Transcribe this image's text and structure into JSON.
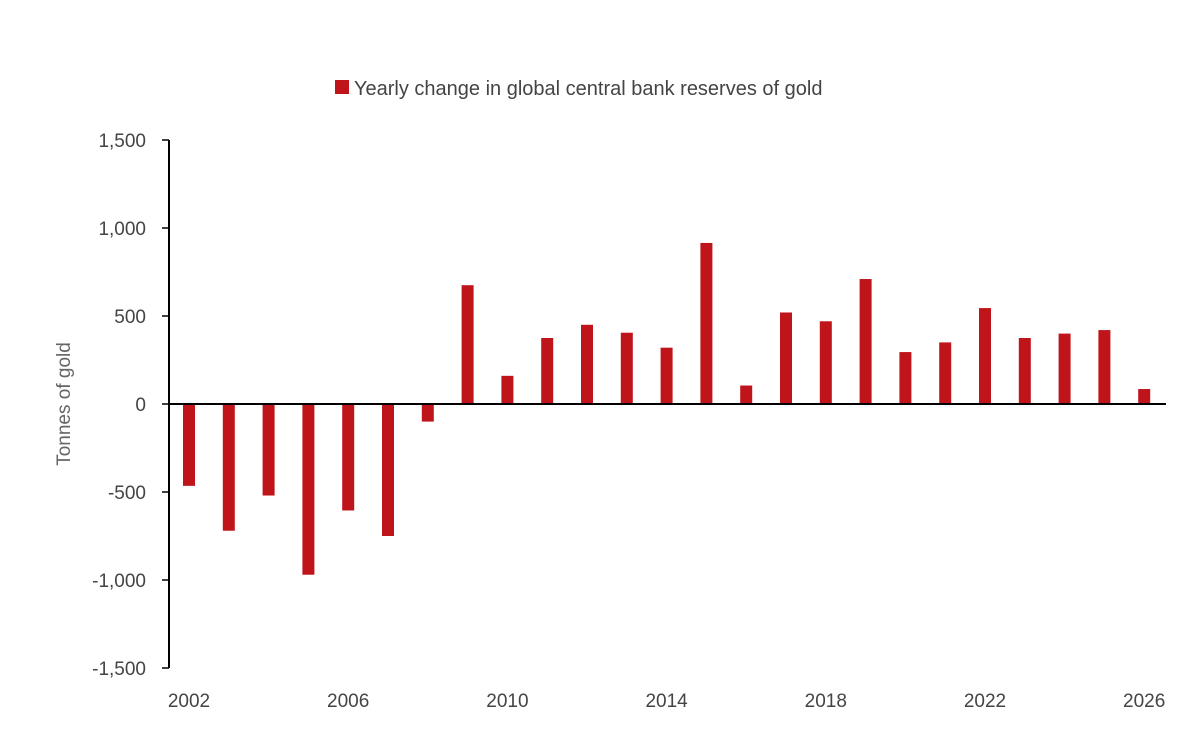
{
  "chart_data": {
    "type": "bar",
    "title": "",
    "legend": {
      "position": "top-center",
      "entries": [
        "Yearly change in global central bank reserves of gold"
      ]
    },
    "ylabel": "Tonnes of gold",
    "xlabel": "",
    "ylim": [
      -1500,
      1500
    ],
    "y_ticks": [
      1500,
      1000,
      500,
      0,
      -500,
      -1000,
      -1500
    ],
    "y_tick_labels": [
      "1,500",
      "1,000",
      "500",
      "0",
      "-500",
      "-1,000",
      "-1,500"
    ],
    "x_tick_labels": [
      "2002",
      "2006",
      "2010",
      "2014",
      "2018",
      "2022",
      "2026"
    ],
    "grid": false,
    "series": [
      {
        "name": "Yearly change in global central bank reserves of gold",
        "color": "#c0141b",
        "x": [
          2002,
          2003,
          2004,
          2005,
          2006,
          2007,
          2008,
          2009,
          2010,
          2011,
          2012,
          2013,
          2014,
          2015,
          2016,
          2017,
          2018,
          2019,
          2020,
          2021,
          2022,
          2023,
          2024,
          2025,
          2026
        ],
        "values": [
          -465,
          -720,
          -520,
          -970,
          -605,
          -750,
          -100,
          675,
          160,
          375,
          450,
          405,
          320,
          915,
          105,
          520,
          470,
          710,
          295,
          350,
          545,
          375,
          400,
          420,
          85
        ]
      }
    ]
  }
}
